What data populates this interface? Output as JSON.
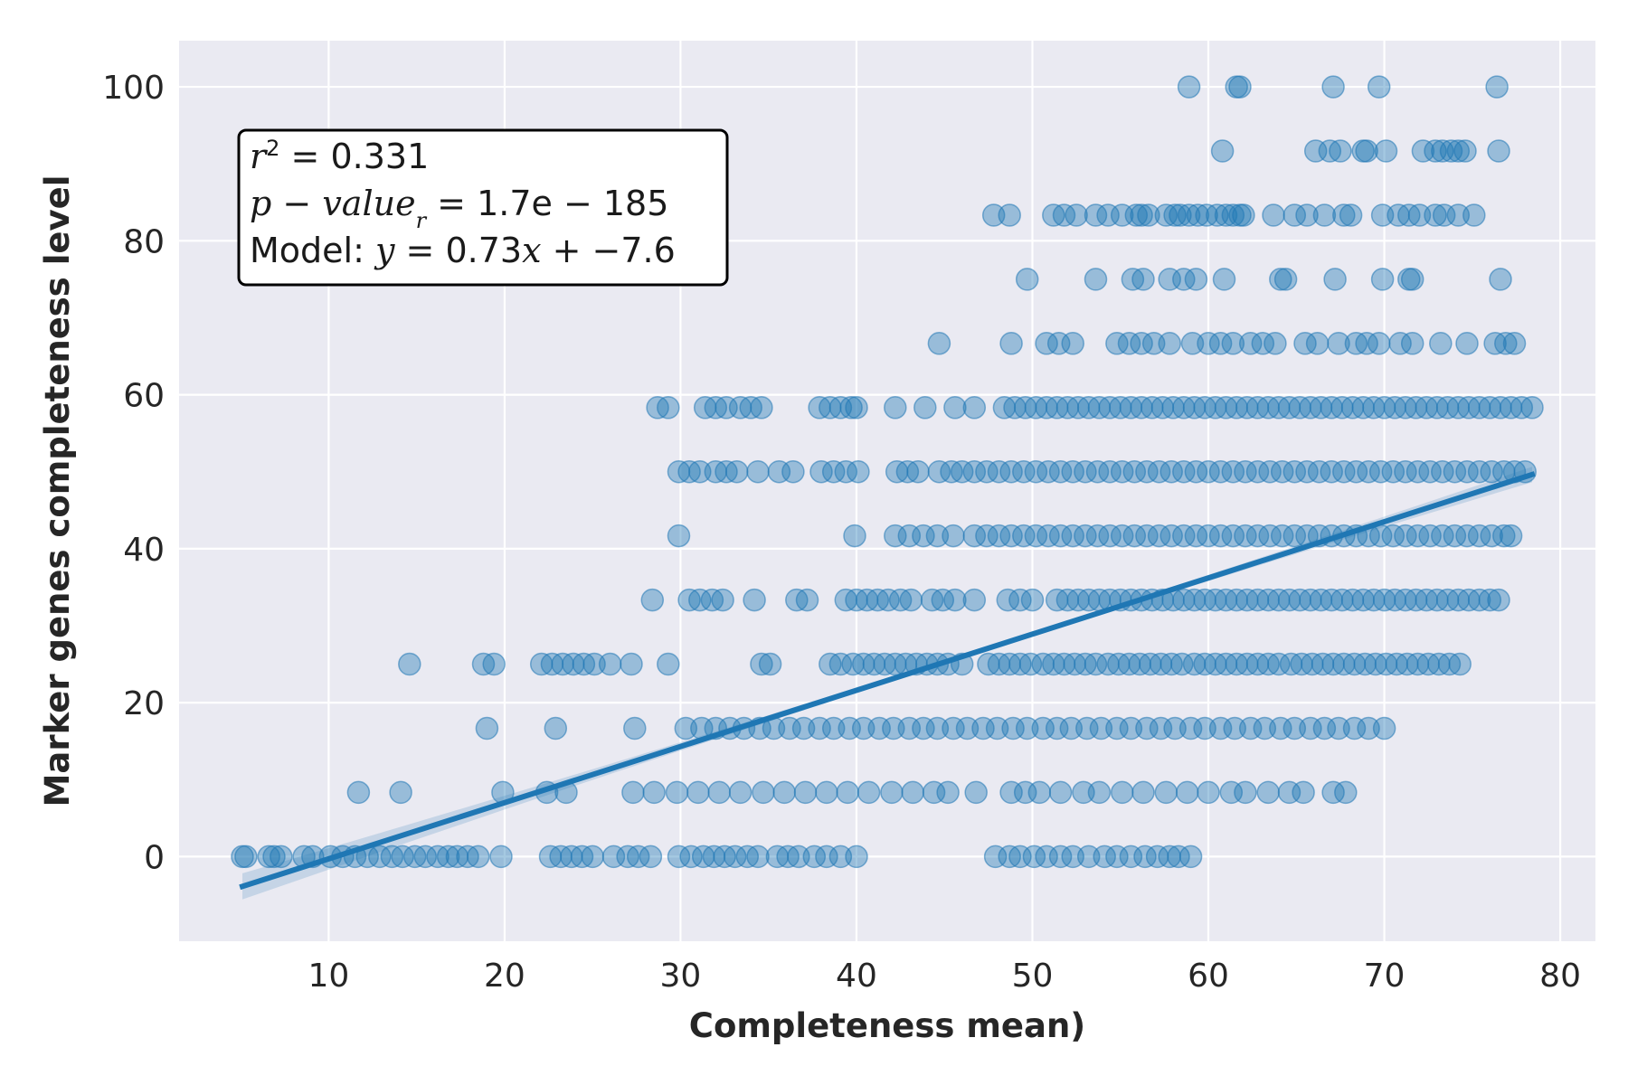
{
  "chart_data": {
    "type": "scatter",
    "title": "",
    "xlabel": "Completeness mean)",
    "ylabel": "Marker genes completeness level",
    "xlim": [
      1.5,
      82
    ],
    "ylim": [
      -11,
      106
    ],
    "xticks": [
      10,
      20,
      30,
      40,
      50,
      60,
      70,
      80
    ],
    "yticks": [
      0,
      20,
      40,
      60,
      80,
      100
    ],
    "grid": true,
    "background": "#eaeaf2",
    "point_color": "#1f77b4",
    "point_alpha": 0.4,
    "y_levels": [
      0,
      8.33,
      16.67,
      25,
      33.33,
      41.67,
      50,
      58.33,
      66.67,
      75,
      83.33,
      91.67,
      100
    ],
    "series": [
      {
        "points_by_level": [
          {
            "y": 0,
            "x": [
              5.1,
              5.3,
              6.6,
              6.9,
              7.3,
              8.6,
              9.1,
              10.1,
              10.8,
              11.5,
              12.2,
              12.9,
              13.6,
              14.2,
              14.9,
              15.5,
              16.2,
              16.8,
              17.3,
              17.9,
              18.5,
              19.8,
              22.6,
              23.2,
              23.8,
              24.4,
              25.0,
              26.2,
              27.0,
              27.6,
              28.3,
              29.9,
              30.6,
              31.3,
              31.9,
              32.5,
              33.1,
              33.8,
              34.4,
              35.5,
              36.1,
              36.7,
              37.6,
              38.3,
              39.1,
              40.0,
              47.9,
              48.7,
              49.3,
              50.1,
              50.8,
              51.6,
              52.3,
              53.2,
              54.1,
              54.8,
              55.6,
              56.4,
              57.1,
              57.8,
              58.3,
              59.0
            ]
          },
          {
            "y": 8.33,
            "x": [
              11.7,
              14.1,
              19.9,
              22.4,
              23.5,
              27.3,
              28.5,
              29.8,
              31.0,
              32.2,
              33.4,
              34.7,
              35.9,
              37.1,
              38.3,
              39.5,
              40.7,
              42.0,
              43.2,
              44.4,
              45.2,
              46.8,
              48.8,
              49.6,
              50.4,
              51.6,
              52.9,
              53.8,
              55.1,
              56.3,
              57.6,
              58.8,
              60.0,
              61.3,
              62.1,
              63.4,
              64.6,
              65.4,
              67.1,
              67.8
            ]
          },
          {
            "y": 16.67,
            "x": [
              19.0,
              22.9,
              27.4,
              30.3,
              31.2,
              32.0,
              32.8,
              33.6,
              34.5,
              35.3,
              36.2,
              37.0,
              37.9,
              38.7,
              39.6,
              40.4,
              41.3,
              42.1,
              43.0,
              43.8,
              44.6,
              45.5,
              46.3,
              47.2,
              48.0,
              48.9,
              49.7,
              50.6,
              51.4,
              52.2,
              53.1,
              53.9,
              54.8,
              55.6,
              56.5,
              57.3,
              58.1,
              59.0,
              59.8,
              60.7,
              61.5,
              62.4,
              63.2,
              64.1,
              64.9,
              65.8,
              66.6,
              67.4,
              68.3,
              69.1,
              70.0
            ]
          },
          {
            "y": 25,
            "x": [
              14.6,
              18.8,
              19.4,
              22.1,
              22.7,
              23.3,
              23.9,
              24.5,
              25.1,
              26.0,
              27.2,
              29.3,
              34.6,
              35.1,
              38.5,
              39.1,
              39.8,
              40.4,
              41.0,
              41.6,
              42.2,
              42.8,
              43.4,
              44.0,
              44.6,
              45.2,
              46.0,
              47.5,
              48.1,
              48.7,
              49.3,
              49.9,
              50.6,
              51.2,
              51.8,
              52.4,
              53.0,
              53.6,
              54.3,
              54.9,
              55.5,
              56.1,
              56.7,
              57.3,
              57.9,
              58.5,
              59.2,
              59.8,
              60.4,
              61.0,
              61.6,
              62.2,
              62.8,
              63.4,
              64.0,
              64.7,
              65.3,
              65.9,
              66.5,
              67.1,
              67.7,
              68.3,
              68.9,
              69.5,
              70.1,
              70.7,
              71.3,
              71.9,
              72.5,
              73.1,
              73.7,
              74.3
            ]
          },
          {
            "y": 33.33,
            "x": [
              28.4,
              30.5,
              31.1,
              31.8,
              32.4,
              34.2,
              36.6,
              37.2,
              39.4,
              40.0,
              40.6,
              41.2,
              41.8,
              42.5,
              43.1,
              44.3,
              44.9,
              45.6,
              46.7,
              48.6,
              49.3,
              50.0,
              51.4,
              52.0,
              52.6,
              53.2,
              53.8,
              54.4,
              55.0,
              55.6,
              56.2,
              56.8,
              57.4,
              58.0,
              58.6,
              59.2,
              59.8,
              60.4,
              61.0,
              61.6,
              62.2,
              62.8,
              63.4,
              64.0,
              64.6,
              65.2,
              65.8,
              66.4,
              67.0,
              67.6,
              68.2,
              68.8,
              69.4,
              70.0,
              70.6,
              71.2,
              71.8,
              72.4,
              73.0,
              73.6,
              74.2,
              74.8,
              75.4,
              76.0,
              76.5
            ]
          },
          {
            "y": 41.67,
            "x": [
              29.9,
              39.9,
              42.2,
              43.0,
              43.8,
              44.6,
              45.5,
              46.7,
              47.4,
              48.1,
              48.8,
              49.5,
              50.2,
              50.9,
              51.6,
              52.3,
              53.0,
              53.7,
              54.4,
              55.1,
              55.8,
              56.5,
              57.2,
              57.9,
              58.6,
              59.3,
              60.0,
              60.7,
              61.4,
              62.1,
              62.8,
              63.5,
              64.2,
              64.9,
              65.6,
              66.3,
              67.0,
              67.7,
              68.4,
              69.1,
              69.8,
              70.5,
              71.2,
              71.9,
              72.6,
              73.3,
              74.0,
              74.7,
              75.4,
              76.1,
              76.8,
              77.2
            ]
          },
          {
            "y": 50,
            "x": [
              29.9,
              30.5,
              31.1,
              32.0,
              32.6,
              33.2,
              34.4,
              35.6,
              36.4,
              38.0,
              38.7,
              39.4,
              40.1,
              42.3,
              42.9,
              43.5,
              44.7,
              45.4,
              46.0,
              46.7,
              47.4,
              48.1,
              48.8,
              49.5,
              50.2,
              50.9,
              51.6,
              52.3,
              53.0,
              53.7,
              54.4,
              55.1,
              55.8,
              56.5,
              57.2,
              57.9,
              58.6,
              59.3,
              60.0,
              60.7,
              61.4,
              62.1,
              62.8,
              63.5,
              64.2,
              64.9,
              65.6,
              66.3,
              67.0,
              67.7,
              68.4,
              69.1,
              69.8,
              70.5,
              71.2,
              71.9,
              72.6,
              73.3,
              74.0,
              74.7,
              75.4,
              76.1,
              76.8,
              77.4,
              78.0
            ]
          },
          {
            "y": 58.33,
            "x": [
              28.7,
              29.3,
              31.4,
              32.0,
              32.6,
              33.4,
              34.0,
              34.6,
              37.9,
              38.5,
              39.1,
              39.7,
              40.0,
              42.2,
              43.9,
              45.6,
              46.7,
              48.4,
              49.0,
              49.6,
              50.2,
              50.8,
              51.4,
              52.0,
              52.6,
              53.2,
              53.8,
              54.4,
              55.0,
              55.6,
              56.2,
              56.8,
              57.4,
              58.0,
              58.6,
              59.2,
              59.8,
              60.4,
              61.0,
              61.6,
              62.2,
              62.8,
              63.4,
              64.0,
              64.6,
              65.2,
              65.8,
              66.4,
              67.0,
              67.6,
              68.2,
              68.8,
              69.4,
              70.0,
              70.6,
              71.2,
              71.8,
              72.4,
              73.0,
              73.6,
              74.2,
              74.8,
              75.4,
              76.0,
              76.6,
              77.2,
              77.8,
              78.4
            ]
          },
          {
            "y": 66.67,
            "x": [
              44.7,
              48.8,
              50.8,
              51.5,
              52.3,
              54.8,
              55.5,
              56.2,
              56.9,
              57.8,
              59.1,
              60.0,
              60.7,
              61.4,
              62.4,
              63.1,
              63.8,
              65.5,
              66.2,
              67.4,
              68.4,
              69.0,
              69.7,
              70.9,
              71.6,
              73.2,
              74.7,
              76.3,
              76.9,
              77.4
            ]
          },
          {
            "y": 75,
            "x": [
              49.7,
              53.6,
              55.7,
              56.3,
              57.8,
              58.6,
              59.3,
              60.9,
              64.1,
              64.4,
              67.2,
              69.9,
              71.4,
              71.6,
              76.6
            ]
          },
          {
            "y": 83.33,
            "x": [
              47.8,
              48.7,
              51.2,
              51.8,
              52.5,
              53.6,
              54.3,
              55.1,
              55.9,
              56.2,
              56.6,
              57.6,
              58.1,
              58.4,
              58.9,
              59.4,
              59.9,
              60.5,
              61.0,
              61.4,
              61.8,
              62.0,
              63.7,
              64.9,
              65.6,
              66.6,
              67.7,
              68.1,
              69.9,
              70.8,
              71.4,
              72.0,
              72.9,
              73.4,
              74.2,
              75.1
            ]
          },
          {
            "y": 91.67,
            "x": [
              60.8,
              66.1,
              66.9,
              67.5,
              68.8,
              69.0,
              70.1,
              72.2,
              72.9,
              73.3,
              73.8,
              74.2,
              74.6,
              76.5
            ]
          },
          {
            "y": 100,
            "x": [
              58.9,
              61.6,
              61.8,
              67.1,
              69.7,
              76.4
            ]
          }
        ]
      }
    ],
    "regression": {
      "slope": 0.73,
      "intercept": -7.6,
      "x_range": [
        5.1,
        78.4
      ],
      "ci_band": true
    },
    "annotation": {
      "r2_value": "0.331",
      "p_value": "1.7e − 185",
      "model_prefix": "Model:",
      "model_slope": "0.73",
      "model_intercept": "−7.6"
    }
  }
}
